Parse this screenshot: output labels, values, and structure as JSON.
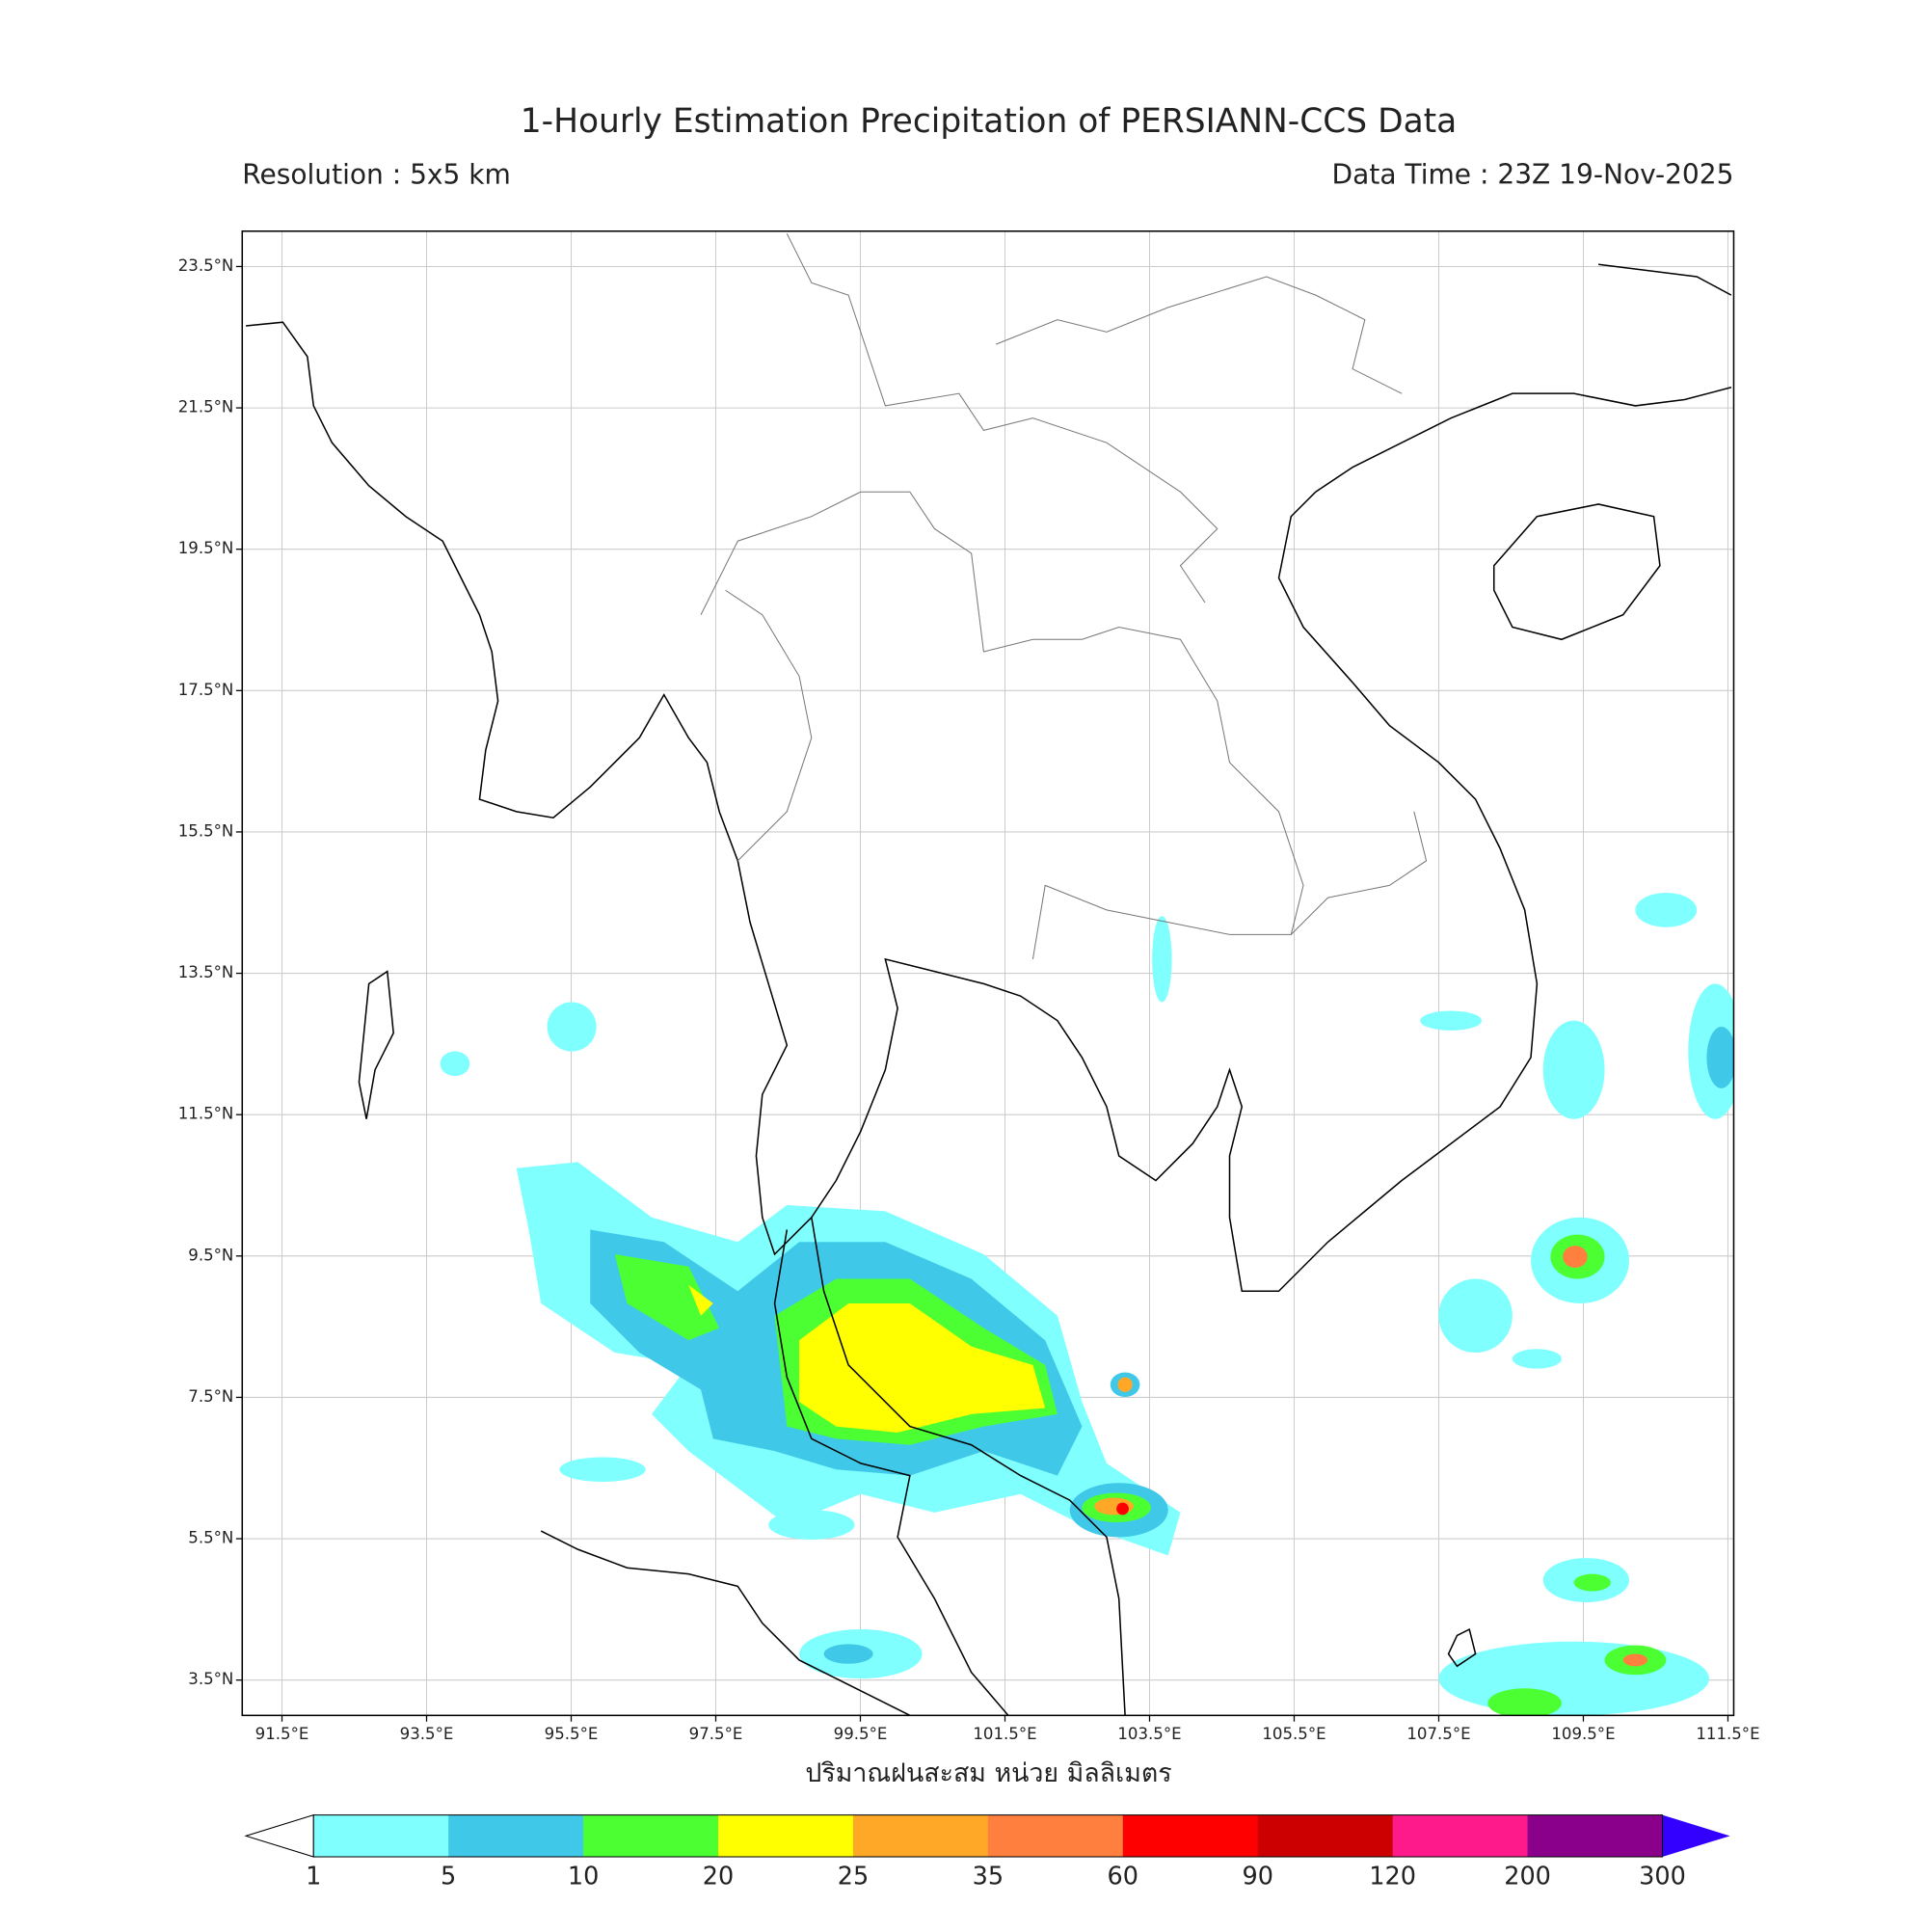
{
  "header": {
    "title": "1-Hourly Estimation Precipitation of PERSIANN-CCS Data",
    "resolution": "Resolution : 5x5 km",
    "data_time": "Data Time : 23Z 19-Nov-2025"
  },
  "map": {
    "xlim": [
      90.95,
      111.58
    ],
    "ylim": [
      3.0,
      24.0
    ],
    "grid": true,
    "lon_ticks": [
      {
        "value": 91.5,
        "label": "91.5°E"
      },
      {
        "value": 93.5,
        "label": "93.5°E"
      },
      {
        "value": 95.5,
        "label": "95.5°E"
      },
      {
        "value": 97.5,
        "label": "97.5°E"
      },
      {
        "value": 99.5,
        "label": "99.5°E"
      },
      {
        "value": 101.5,
        "label": "101.5°E"
      },
      {
        "value": 103.5,
        "label": "103.5°E"
      },
      {
        "value": 105.5,
        "label": "105.5°E"
      },
      {
        "value": 107.5,
        "label": "107.5°E"
      },
      {
        "value": 109.5,
        "label": "109.5°E"
      },
      {
        "value": 111.5,
        "label": "111.5°E"
      }
    ],
    "lat_ticks": [
      {
        "value": 23.5,
        "label": "23.5°N"
      },
      {
        "value": 21.5,
        "label": "21.5°N"
      },
      {
        "value": 19.5,
        "label": "19.5°N"
      },
      {
        "value": 17.5,
        "label": "17.5°N"
      },
      {
        "value": 15.5,
        "label": "15.5°N"
      },
      {
        "value": 13.5,
        "label": "13.5°N"
      },
      {
        "value": 11.5,
        "label": "11.5°N"
      },
      {
        "value": 9.5,
        "label": "9.5°N"
      },
      {
        "value": 7.5,
        "label": "7.5°N"
      },
      {
        "value": 5.5,
        "label": "5.5°N"
      },
      {
        "value": 3.5,
        "label": "3.5°N"
      }
    ],
    "xlabel": "ปริมาณฝนสะสม หน่วย มิลลิเมตร"
  },
  "colorbar": {
    "levels": [
      1,
      5,
      10,
      20,
      25,
      35,
      60,
      90,
      120,
      200,
      300
    ],
    "colors": [
      "#80ffff",
      "#40c8e8",
      "#4cff33",
      "#ffff00",
      "#ffa726",
      "#ff7f3f",
      "#ff0000",
      "#cc0000",
      "#ff1a8c",
      "#8b008b"
    ],
    "under_color": "#ffffff",
    "over_color": "#3300ff"
  }
}
